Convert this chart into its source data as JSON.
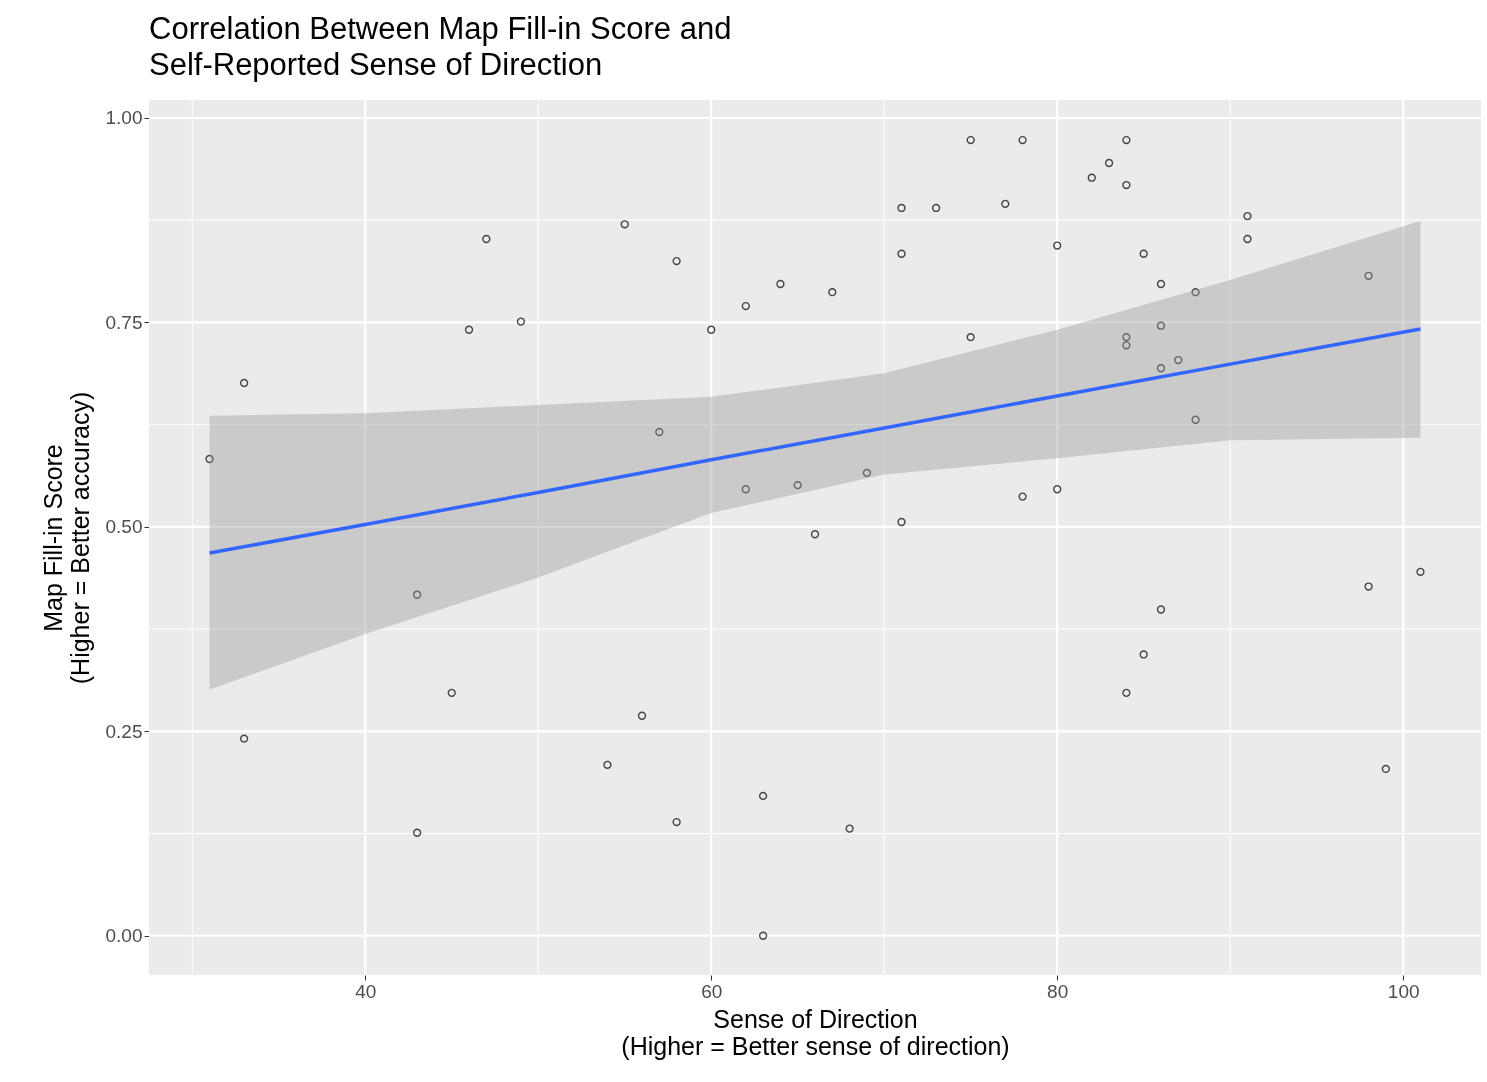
{
  "chart_data": {
    "type": "scatter",
    "title": "Correlation Between Map Fill-in Score and\nSelf-Reported Sense of Direction",
    "xlabel": "Sense of Direction\n(Higher = Better sense of direction)",
    "ylabel": "Map Fill-in Score\n(Higher = Better accuracy)",
    "xlim": [
      27.5,
      104.5
    ],
    "ylim": [
      -0.048,
      1.022
    ],
    "xticks": [
      {
        "value": 30,
        "label": null
      },
      40,
      {
        "value": 50,
        "label": null
      },
      60,
      {
        "value": 70,
        "label": null
      },
      80,
      {
        "value": 90,
        "label": null
      },
      100
    ],
    "yticks": [
      {
        "value": 0,
        "label": "0.00"
      },
      {
        "value": 0.125,
        "label": null
      },
      {
        "value": 0.25,
        "label": "0.25"
      },
      {
        "value": 0.375,
        "label": null
      },
      {
        "value": 0.5,
        "label": "0.50"
      },
      {
        "value": 0.625,
        "label": null
      },
      {
        "value": 0.75,
        "label": "0.75"
      },
      {
        "value": 0.875,
        "label": null
      },
      {
        "value": 1,
        "label": "1.00"
      }
    ],
    "grid": true,
    "series": [
      {
        "marker": "circle",
        "color": "#000000",
        "x": [
          31,
          33,
          33,
          43,
          43,
          45,
          46,
          47,
          49,
          54,
          55,
          56,
          57,
          58,
          58,
          60,
          62,
          62,
          63,
          63,
          64,
          65,
          66,
          67,
          68,
          69,
          71,
          71,
          71,
          73,
          75,
          75,
          77,
          78,
          78,
          80,
          80,
          82,
          83,
          84,
          84,
          84,
          84,
          84,
          85,
          85,
          86,
          86,
          86,
          86,
          87,
          88,
          88,
          91,
          91,
          98,
          98,
          99,
          101
        ],
        "values": [
          0.583,
          0.676,
          0.241,
          0.417,
          0.126,
          0.297,
          0.741,
          0.852,
          0.751,
          0.209,
          0.87,
          0.269,
          0.616,
          0.825,
          0.139,
          0.741,
          0.77,
          0.546,
          0.171,
          0.0,
          0.797,
          0.551,
          0.491,
          0.787,
          0.131,
          0.566,
          0.89,
          0.834,
          0.506,
          0.89,
          0.973,
          0.732,
          0.895,
          0.973,
          0.537,
          0.844,
          0.546,
          0.927,
          0.945,
          0.973,
          0.918,
          0.732,
          0.722,
          0.297,
          0.834,
          0.344,
          0.797,
          0.746,
          0.694,
          0.399,
          0.704,
          0.787,
          0.631,
          0.88,
          0.852,
          0.807,
          0.427,
          0.204,
          0.445
        ]
      },
      {
        "type": "line",
        "color": "#3366ff",
        "x": [
          31,
          40,
          50,
          60,
          70,
          80,
          90,
          101
        ],
        "values": [
          0.468,
          0.503,
          0.542,
          0.582,
          0.621,
          0.66,
          0.699,
          0.742
        ],
        "lower": [
          0.301,
          0.369,
          0.438,
          0.517,
          0.564,
          0.584,
          0.606,
          0.609
        ],
        "upper": [
          0.636,
          0.639,
          0.649,
          0.659,
          0.688,
          0.741,
          0.802,
          0.874
        ]
      }
    ]
  }
}
